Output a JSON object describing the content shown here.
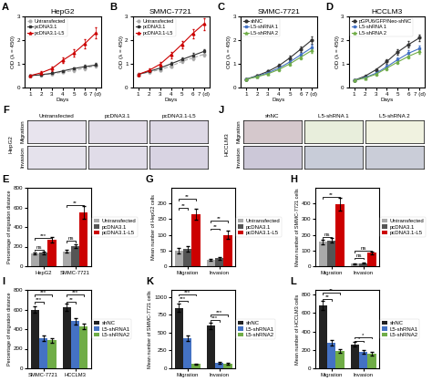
{
  "chart_data": [
    {
      "type": "line",
      "panel": "A",
      "title": "HepG2",
      "xlabel": "Days",
      "ylabel": "OD (λ = 450)",
      "x": [
        1,
        2,
        3,
        4,
        5,
        6,
        7
      ],
      "xlim": [
        0.5,
        7.5
      ],
      "xticks": [
        1,
        2,
        3,
        4,
        5,
        6,
        {
          "value": 7,
          "label": "7 (d)"
        }
      ],
      "ylim": [
        0,
        3
      ],
      "yticks": [
        0,
        1,
        2,
        3
      ],
      "legend": "upper left",
      "series": [
        {
          "name": "Untransfected",
          "color": "#aaaaaa",
          "marker": "circle",
          "line_style": "dashed",
          "values": [
            0.5,
            0.52,
            0.58,
            0.65,
            0.72,
            0.82,
            0.92
          ],
          "error": [
            0.04,
            0.04,
            0.04,
            0.05,
            0.06,
            0.07,
            0.07
          ]
        },
        {
          "name": "pcDNA3.1",
          "color": "#333333",
          "marker": "square",
          "line_style": "solid",
          "values": [
            0.5,
            0.54,
            0.6,
            0.7,
            0.8,
            0.88,
            0.95
          ],
          "error": [
            0.04,
            0.04,
            0.05,
            0.05,
            0.06,
            0.07,
            0.08
          ]
        },
        {
          "name": "pcDNA3.1-L5",
          "color": "#cc0000",
          "marker": "triangle",
          "line_style": "solid",
          "values": [
            0.5,
            0.62,
            0.8,
            1.15,
            1.45,
            1.85,
            2.3
          ],
          "error": [
            0.05,
            0.07,
            0.09,
            0.12,
            0.15,
            0.18,
            0.22
          ]
        }
      ]
    },
    {
      "type": "line",
      "panel": "B",
      "title": "SMMC-7721",
      "xlabel": "Days",
      "ylabel": "OD (λ = 450)",
      "x": [
        1,
        2,
        3,
        4,
        5,
        6,
        7
      ],
      "xlim": [
        0.5,
        7.5
      ],
      "xticks": [
        1,
        2,
        3,
        4,
        5,
        6,
        {
          "value": 7,
          "label": "7 (d)"
        }
      ],
      "ylim": [
        0,
        3
      ],
      "yticks": [
        0,
        1,
        2,
        3
      ],
      "legend": "upper left",
      "series": [
        {
          "name": "Untransfected",
          "color": "#aaaaaa",
          "marker": "circle",
          "line_style": "dashed",
          "values": [
            0.55,
            0.65,
            0.75,
            0.9,
            1.1,
            1.25,
            1.4
          ],
          "error": [
            0.04,
            0.05,
            0.06,
            0.07,
            0.08,
            0.09,
            0.1
          ]
        },
        {
          "name": "pcDNA3.1",
          "color": "#333333",
          "marker": "square",
          "line_style": "solid",
          "values": [
            0.55,
            0.68,
            0.82,
            1.0,
            1.18,
            1.35,
            1.52
          ],
          "error": [
            0.04,
            0.05,
            0.06,
            0.07,
            0.09,
            0.1,
            0.11
          ]
        },
        {
          "name": "pcDNA3.1-L5",
          "color": "#cc0000",
          "marker": "triangle",
          "line_style": "solid",
          "values": [
            0.55,
            0.72,
            0.98,
            1.38,
            1.82,
            2.28,
            2.68
          ],
          "error": [
            0.05,
            0.07,
            0.1,
            0.13,
            0.16,
            0.2,
            0.24
          ]
        }
      ]
    },
    {
      "type": "line",
      "panel": "C",
      "title": "SMMC-7721",
      "xlabel": "Days",
      "ylabel": "OD (λ = 450)",
      "x": [
        1,
        2,
        3,
        4,
        5,
        6,
        7
      ],
      "xlim": [
        0.5,
        7.5
      ],
      "xticks": [
        1,
        2,
        3,
        4,
        5,
        6,
        {
          "value": 7,
          "label": "7 (d)"
        }
      ],
      "ylim": [
        0,
        3
      ],
      "yticks": [
        0,
        1,
        2,
        3
      ],
      "legend": "upper left",
      "series": [
        {
          "name": "shNC",
          "color": "#333333",
          "marker": "circle",
          "line_style": "solid",
          "values": [
            0.35,
            0.5,
            0.68,
            0.92,
            1.25,
            1.62,
            2.0
          ],
          "error": [
            0.03,
            0.05,
            0.06,
            0.08,
            0.1,
            0.12,
            0.15
          ]
        },
        {
          "name": "L5-shRNA 1",
          "color": "#4472c4",
          "marker": "square",
          "line_style": "solid",
          "values": [
            0.35,
            0.47,
            0.62,
            0.82,
            1.08,
            1.38,
            1.68
          ],
          "error": [
            0.03,
            0.04,
            0.05,
            0.07,
            0.09,
            0.1,
            0.12
          ]
        },
        {
          "name": "L5-shRNA 2",
          "color": "#70ad47",
          "marker": "triangle",
          "line_style": "solid",
          "values": [
            0.35,
            0.45,
            0.58,
            0.76,
            1.0,
            1.28,
            1.56
          ],
          "error": [
            0.03,
            0.04,
            0.05,
            0.06,
            0.08,
            0.09,
            0.11
          ]
        }
      ]
    },
    {
      "type": "line",
      "panel": "D",
      "title": "HCCLM3",
      "xlabel": "Days",
      "ylabel": "OD (λ = 450)",
      "x": [
        1,
        2,
        3,
        4,
        5,
        6,
        7
      ],
      "xlim": [
        0.5,
        7.5
      ],
      "xticks": [
        1,
        2,
        3,
        4,
        5,
        6,
        {
          "value": 7,
          "label": "7 (d)"
        }
      ],
      "ylim": [
        0,
        3
      ],
      "yticks": [
        0,
        1,
        2,
        3
      ],
      "legend": "upper left",
      "series": [
        {
          "name": "pGPU6/GFP/Neo-shNC",
          "color": "#333333",
          "marker": "circle",
          "line_style": "solid",
          "values": [
            0.3,
            0.48,
            0.75,
            1.1,
            1.5,
            1.82,
            2.1
          ],
          "error": [
            0.03,
            0.05,
            0.07,
            0.09,
            0.11,
            0.13,
            0.15
          ]
        },
        {
          "name": "L5-shRNA 1",
          "color": "#4472c4",
          "marker": "square",
          "line_style": "solid",
          "values": [
            0.3,
            0.42,
            0.6,
            0.88,
            1.18,
            1.45,
            1.65
          ],
          "error": [
            0.03,
            0.04,
            0.06,
            0.08,
            0.09,
            0.11,
            0.12
          ]
        },
        {
          "name": "L5-shRNA 2",
          "color": "#70ad47",
          "marker": "triangle",
          "line_style": "solid",
          "values": [
            0.3,
            0.4,
            0.56,
            0.82,
            1.08,
            1.32,
            1.52
          ],
          "error": [
            0.02,
            0.03,
            0.05,
            0.07,
            0.08,
            0.09,
            0.1
          ]
        }
      ]
    },
    {
      "type": "bar",
      "panel": "E",
      "ylabel": "Percentage of migration distance",
      "categories": [
        "HepG2",
        "SMMC-7721"
      ],
      "ylim": [
        0,
        800
      ],
      "yticks": [
        0,
        200,
        400,
        600,
        800
      ],
      "legend": "right",
      "series": [
        {
          "name": "Untransfected",
          "color": "#aaaaaa",
          "values": [
            130,
            150
          ],
          "error": [
            12,
            14
          ]
        },
        {
          "name": "pcDNA3.1",
          "color": "#555555",
          "values": [
            135,
            205
          ],
          "error": [
            13,
            20
          ]
        },
        {
          "name": "pcDNA3.1-L5",
          "color": "#cc0000",
          "values": [
            270,
            545
          ],
          "error": [
            28,
            65
          ]
        }
      ],
      "annotations": [
        {
          "text": "ns",
          "category": "HepG2",
          "between": [
            "Untransfected",
            "pcDNA3.1"
          ],
          "y": 170
        },
        {
          "text": "***",
          "category": "HepG2",
          "between": [
            "Untransfected",
            "pcDNA3.1-L5"
          ],
          "y": 290
        },
        {
          "text": "ns",
          "category": "SMMC-7721",
          "between": [
            "Untransfected",
            "pcDNA3.1"
          ],
          "y": 260
        },
        {
          "text": "**",
          "category": "SMMC-7721",
          "between": [
            "Untransfected",
            "pcDNA3.1-L5"
          ],
          "y": 620
        }
      ]
    },
    {
      "type": "image_grid",
      "panel": "F",
      "ylabel": "HepG2",
      "tick_labels": false,
      "categories": [
        "Untransfected",
        "pcDNA3.1",
        "pcDNA3.1-L5"
      ],
      "series": [
        {
          "name": "Migration",
          "colors": [
            "#e8e4ee",
            "#e2dde8",
            "#ddd8e5"
          ]
        },
        {
          "name": "Invasion",
          "colors": [
            "#e5e2ec",
            "#e0dce8",
            "#d8d3e2"
          ]
        }
      ]
    },
    {
      "type": "bar",
      "panel": "G",
      "ylabel": "Mean number of HepG2 cells",
      "categories": [
        "Migration",
        "Invasion"
      ],
      "ylim": [
        0,
        250
      ],
      "yticks": [
        0,
        50,
        100,
        150,
        200
      ],
      "legend": "right",
      "series": [
        {
          "name": "Untransfected",
          "color": "#aaaaaa",
          "values": [
            50,
            20
          ],
          "error": [
            8,
            4
          ]
        },
        {
          "name": "pcDNA3.1",
          "color": "#555555",
          "values": [
            55,
            25
          ],
          "error": [
            8,
            4
          ]
        },
        {
          "name": "pcDNA3.1-L5",
          "color": "#cc0000",
          "values": [
            165,
            100
          ],
          "error": [
            18,
            12
          ]
        }
      ],
      "annotations": [
        {
          "text": "**",
          "category": "Migration",
          "between": [
            "Untransfected",
            "pcDNA3.1"
          ],
          "y": 185
        },
        {
          "text": "**",
          "category": "Migration",
          "between": [
            "Untransfected",
            "pcDNA3.1-L5"
          ],
          "y": 215
        },
        {
          "text": "**",
          "category": "Invasion",
          "between": [
            "Untransfected",
            "pcDNA3.1"
          ],
          "y": 120
        },
        {
          "text": "**",
          "category": "Invasion",
          "between": [
            "Untransfected",
            "pcDNA3.1-L5"
          ],
          "y": 145
        }
      ]
    },
    {
      "type": "bar",
      "panel": "H",
      "ylabel": "Mean number of SMMC-7721 cells",
      "categories": [
        "Migration",
        "Invasion"
      ],
      "ylim": [
        0,
        500
      ],
      "yticks": [
        0,
        100,
        200,
        300,
        400
      ],
      "legend": "right",
      "series": [
        {
          "name": "Untransfected",
          "color": "#aaaaaa",
          "values": [
            155,
            15
          ],
          "error": [
            15,
            3
          ]
        },
        {
          "name": "pcDNA3.1",
          "color": "#555555",
          "values": [
            165,
            18
          ],
          "error": [
            16,
            3
          ]
        },
        {
          "name": "pcDNA3.1-L5",
          "color": "#cc0000",
          "values": [
            395,
            85
          ],
          "error": [
            40,
            10
          ]
        }
      ],
      "annotations": [
        {
          "text": "ns",
          "category": "Migration",
          "between": [
            "Untransfected",
            "pcDNA3.1"
          ],
          "y": 185
        },
        {
          "text": "**",
          "category": "Migration",
          "between": [
            "Untransfected",
            "pcDNA3.1-L5"
          ],
          "y": 440
        },
        {
          "text": "ns",
          "category": "Invasion",
          "between": [
            "Untransfected",
            "pcDNA3.1"
          ],
          "y": 55
        },
        {
          "text": "ns",
          "category": "Invasion",
          "between": [
            "Untransfected",
            "pcDNA3.1-L5"
          ],
          "y": 100
        }
      ]
    },
    {
      "type": "bar",
      "panel": "I",
      "ylabel": "Percentage of migration distance",
      "categories": [
        "SMMC-7721",
        "HCCLM3"
      ],
      "ylim": [
        0,
        800
      ],
      "yticks": [
        0,
        200,
        400,
        600,
        800
      ],
      "legend": "right",
      "series": [
        {
          "name": "shNC",
          "color": "#222222",
          "values": [
            600,
            620
          ],
          "error": [
            35,
            38
          ]
        },
        {
          "name": "L5-shRNA1",
          "color": "#4472c4",
          "values": [
            305,
            480
          ],
          "error": [
            28,
            32
          ]
        },
        {
          "name": "L5-shRNA2",
          "color": "#70ad47",
          "values": [
            285,
            430
          ],
          "error": [
            26,
            30
          ]
        }
      ],
      "annotations": [
        {
          "text": "***",
          "category": "SMMC-7721",
          "between": [
            "shNC",
            "L5-shRNA1"
          ],
          "y": 680
        },
        {
          "text": "***",
          "category": "SMMC-7721",
          "between": [
            "shNC",
            "L5-shRNA2"
          ],
          "y": 750
        },
        {
          "text": "**",
          "category": "HCCLM3",
          "between": [
            "shNC",
            "L5-shRNA1"
          ],
          "y": 680
        },
        {
          "text": "***",
          "category": "HCCLM3",
          "between": [
            "shNC",
            "L5-shRNA2"
          ],
          "y": 750
        }
      ]
    },
    {
      "type": "image_grid",
      "panel": "J",
      "ylabel": "HCCLM3",
      "tick_labels": false,
      "categories": [
        "shNC",
        "L5-shRNA 1",
        "L5-shRNA 2"
      ],
      "series": [
        {
          "name": "Migration",
          "colors": [
            "#d5c8cc",
            "#e8eedc",
            "#f0f2e0"
          ]
        },
        {
          "name": "Invasion",
          "colors": [
            "#ccc8d8",
            "#c8ccd8",
            "#cacdd8"
          ]
        }
      ]
    },
    {
      "type": "bar",
      "panel": "K",
      "ylabel": "Mean number of SMMC-7721 cells",
      "categories": [
        "Migration",
        "Invasion"
      ],
      "ylim": [
        0,
        1100
      ],
      "yticks": [
        0,
        250,
        500,
        750,
        1000
      ],
      "legend": "right",
      "series": [
        {
          "name": "shNC",
          "color": "#222222",
          "values": [
            850,
            600
          ],
          "error": [
            60,
            45
          ]
        },
        {
          "name": "L5-shRNA1",
          "color": "#4472c4",
          "values": [
            420,
            80
          ],
          "error": [
            35,
            10
          ]
        },
        {
          "name": "L5-shRNA2",
          "color": "#70ad47",
          "values": [
            60,
            65
          ],
          "error": [
            8,
            9
          ]
        }
      ],
      "annotations": [
        {
          "text": "***",
          "category": "Migration",
          "between": [
            "shNC",
            "L5-shRNA1"
          ],
          "y": 950
        },
        {
          "text": "***",
          "category": "Migration",
          "between": [
            "shNC",
            "L5-shRNA2"
          ],
          "y": 1040
        },
        {
          "text": "***",
          "category": "Invasion",
          "between": [
            "shNC",
            "L5-shRNA1"
          ],
          "y": 680
        },
        {
          "text": "***",
          "category": "Invasion",
          "between": [
            "shNC",
            "L5-shRNA2"
          ],
          "y": 750
        }
      ]
    },
    {
      "type": "bar",
      "panel": "L",
      "ylabel": "Mean number of HCCLM3 cells",
      "categories": [
        "Migration",
        "Invasion"
      ],
      "ylim": [
        0,
        850
      ],
      "yticks": [
        0,
        200,
        400,
        600,
        800
      ],
      "legend": "right",
      "series": [
        {
          "name": "shNC",
          "color": "#222222",
          "values": [
            680,
            260
          ],
          "error": [
            50,
            25
          ]
        },
        {
          "name": "L5-shRNA1",
          "color": "#4472c4",
          "values": [
            280,
            175
          ],
          "error": [
            28,
            18
          ]
        },
        {
          "name": "L5-shRNA2",
          "color": "#70ad47",
          "values": [
            185,
            160
          ],
          "error": [
            20,
            17
          ]
        }
      ],
      "annotations": [
        {
          "text": "**",
          "category": "Migration",
          "between": [
            "shNC",
            "L5-shRNA1"
          ],
          "y": 750
        },
        {
          "text": "**",
          "category": "Migration",
          "between": [
            "shNC",
            "L5-shRNA2"
          ],
          "y": 820
        },
        {
          "text": "*",
          "category": "Invasion",
          "between": [
            "shNC",
            "L5-shRNA1"
          ],
          "y": 300
        },
        {
          "text": "*",
          "category": "Invasion",
          "between": [
            "shNC",
            "L5-shRNA2"
          ],
          "y": 340
        }
      ]
    }
  ]
}
